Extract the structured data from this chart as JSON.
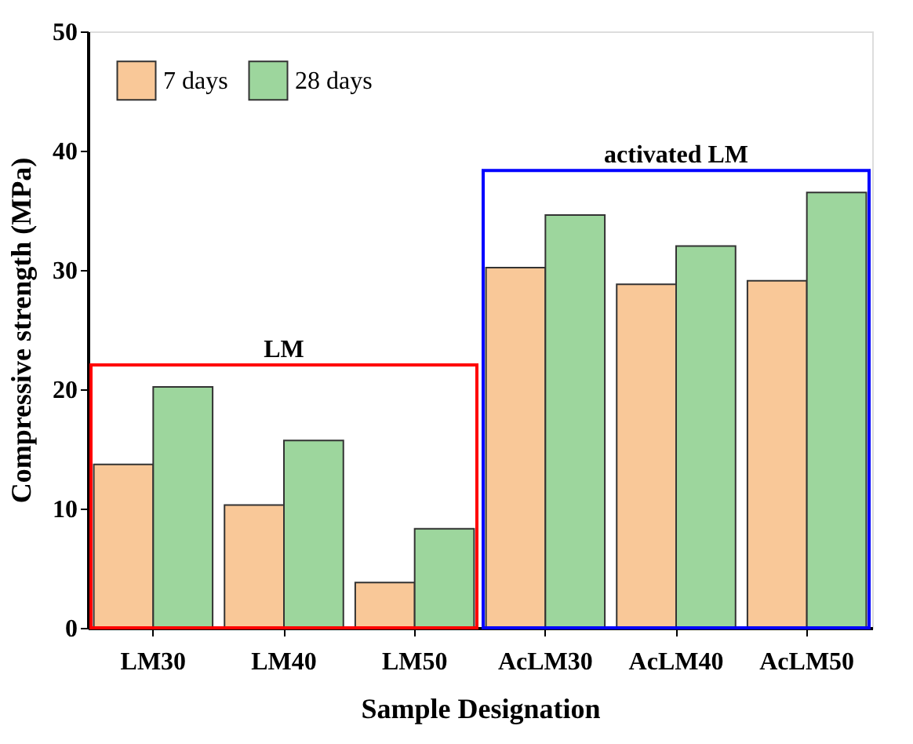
{
  "chart_data": {
    "type": "bar",
    "xlabel": "Sample Designation",
    "ylabel": "Compressive strength (MPa)",
    "categories": [
      "LM30",
      "LM40",
      "LM50",
      "AcLM30",
      "AcLM40",
      "AcLM50"
    ],
    "series": [
      {
        "name": "7 days",
        "color": "#f9c898",
        "values": [
          13.7,
          10.3,
          3.8,
          30.2,
          28.8,
          29.1
        ]
      },
      {
        "name": "28 days",
        "color": "#9dd69d",
        "values": [
          20.2,
          15.7,
          8.3,
          34.6,
          32.0,
          36.5
        ]
      }
    ],
    "ylim": [
      0,
      50
    ],
    "yticks": [
      0,
      10,
      20,
      30,
      40,
      50
    ],
    "legend": "top left",
    "grid": false,
    "annotations": [
      "LM",
      "activated LM"
    ]
  }
}
